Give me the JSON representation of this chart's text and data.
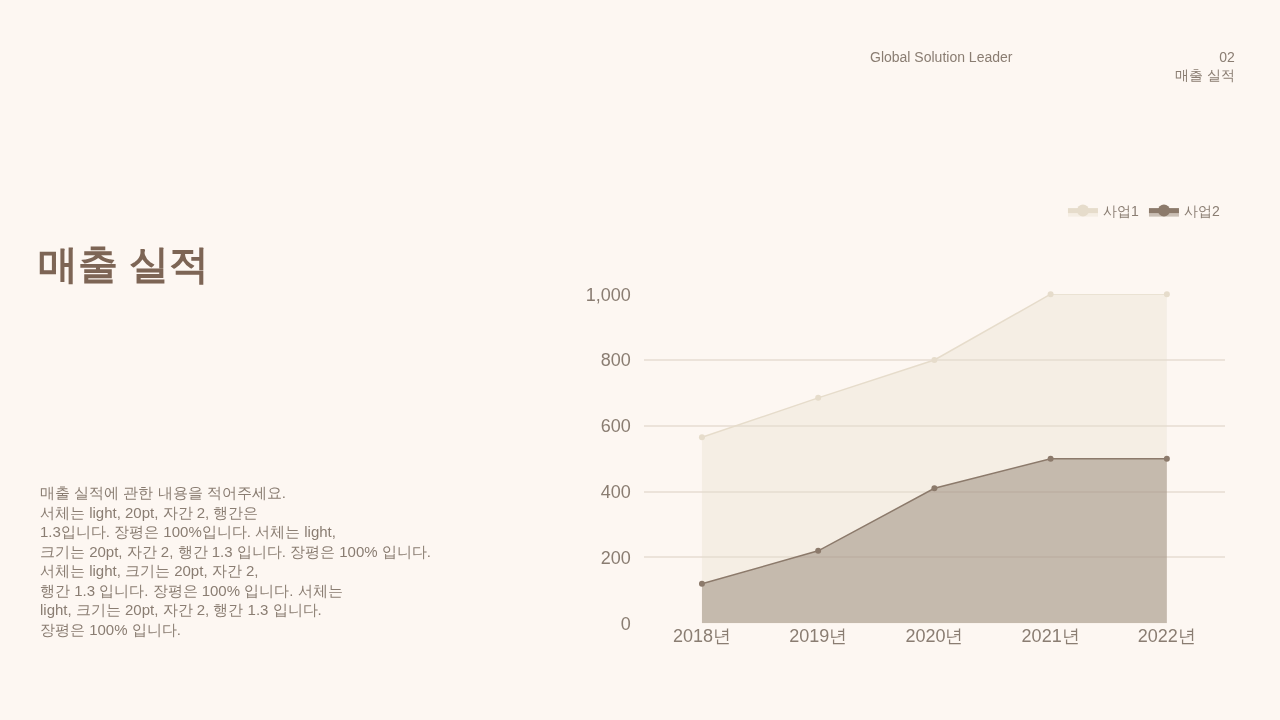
{
  "chart_data": {
    "type": "area",
    "title": "매출 실적",
    "annotations": [
      "Global Solution Leader",
      "02\n매출 실적",
      "매출 실적에 관한 내용을 적어주세요.\n서체는 light, 20pt, 자간 2, 행간은\n1.3입니다. 장평은 100%입니다. 서체는 light,\n크기는 20pt, 자간 2, 행간 1.3 입니다. 장평은 100% 입니다.\n서체는 light, 크기는 20pt, 자간 2,\n행간 1.3 입니다. 장평은 100% 입니다. 서체는\nlight, 크기는 20pt, 자간 2, 행간 1.3 입니다.\n장평은 100% 입니다."
    ],
    "categories": [
      "2018년",
      "2019년",
      "2020년",
      "2021년",
      "2022년"
    ],
    "series": [
      {
        "name": "사업1",
        "color": "#e6dccb",
        "values": [
          565,
          685,
          800,
          1000,
          1000
        ]
      },
      {
        "name": "사업2",
        "color": "#8c7a6b",
        "values": [
          120,
          220,
          410,
          500,
          500
        ]
      }
    ],
    "ylim": [
      0,
      1000
    ],
    "yticks": [
      0,
      200,
      400,
      600,
      800,
      {
        "value": 1000,
        "label": "1,000"
      }
    ],
    "grid": "y",
    "legend": "top right",
    "marker": "circle",
    "line_style": "solid"
  }
}
